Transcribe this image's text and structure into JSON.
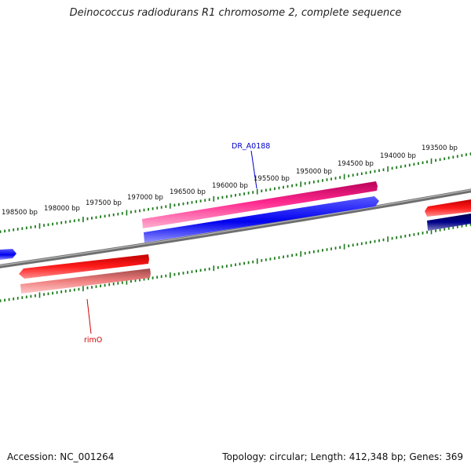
{
  "title": "Deinococcus radiodurans R1 chromosome 2, complete sequence",
  "footer": {
    "accession": "Accession: NC_001264",
    "summary": "Topology: circular; Length: 412,348 bp; Genes: 369"
  },
  "ruler_labels": [
    "198500 bp",
    "198000 bp",
    "197500 bp",
    "197000 bp",
    "196500 bp",
    "196000 bp",
    "195500 bp",
    "195000 bp",
    "194500 bp",
    "194000 bp",
    "193500 bp"
  ],
  "gene_labels": [
    {
      "name": "DR_A0188",
      "color": "#0000cc"
    },
    {
      "name": "rimO",
      "color": "#cc0000"
    }
  ],
  "colors": {
    "backbone": "#808080",
    "ticks": "#1a7a1a",
    "forward_cds": "#ee1177",
    "reverse_cds": "#0000ee",
    "red_gene": "#ee0000",
    "pink_gene": "#ee8080",
    "navy_gene": "#000080"
  }
}
